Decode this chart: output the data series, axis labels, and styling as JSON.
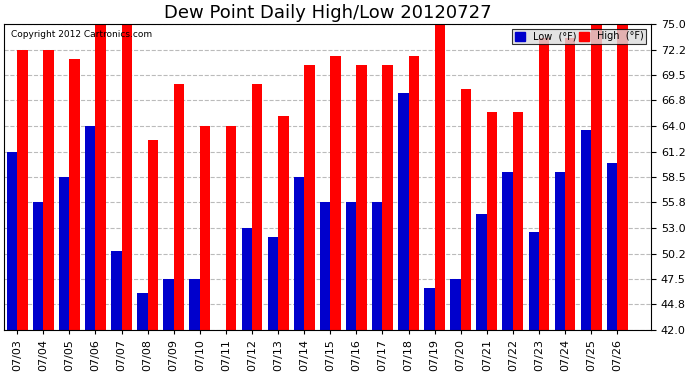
{
  "title": "Dew Point Daily High/Low 20120727",
  "copyright": "Copyright 2012 Cartronics.com",
  "dates": [
    "07/03",
    "07/04",
    "07/05",
    "07/06",
    "07/07",
    "07/08",
    "07/09",
    "07/10",
    "07/11",
    "07/12",
    "07/13",
    "07/14",
    "07/15",
    "07/16",
    "07/17",
    "07/18",
    "07/19",
    "07/20",
    "07/21",
    "07/22",
    "07/23",
    "07/24",
    "07/25",
    "07/26"
  ],
  "high": [
    72.2,
    72.2,
    71.2,
    75.0,
    75.0,
    62.5,
    68.5,
    64.0,
    64.0,
    68.5,
    65.0,
    70.5,
    71.5,
    70.5,
    70.5,
    71.5,
    75.0,
    68.0,
    65.5,
    65.5,
    73.5,
    73.5,
    75.0,
    75.0
  ],
  "low": [
    61.2,
    55.8,
    58.5,
    64.0,
    50.5,
    46.0,
    47.5,
    47.5,
    42.0,
    53.0,
    52.0,
    58.5,
    55.8,
    55.8,
    55.8,
    67.5,
    46.5,
    47.5,
    54.5,
    59.0,
    52.5,
    59.0,
    63.5,
    60.0
  ],
  "ymin": 42.0,
  "ylim": [
    42.0,
    75.0
  ],
  "yticks": [
    42.0,
    44.8,
    47.5,
    50.2,
    53.0,
    55.8,
    58.5,
    61.2,
    64.0,
    66.8,
    69.5,
    72.2,
    75.0
  ],
  "bar_color_high": "#FF0000",
  "bar_color_low": "#0000CC",
  "bg_color": "#FFFFFF",
  "grid_color": "#BBBBBB",
  "title_fontsize": 13,
  "tick_fontsize": 8,
  "legend_low": "Low  (°F)",
  "legend_high": "High  (°F)"
}
